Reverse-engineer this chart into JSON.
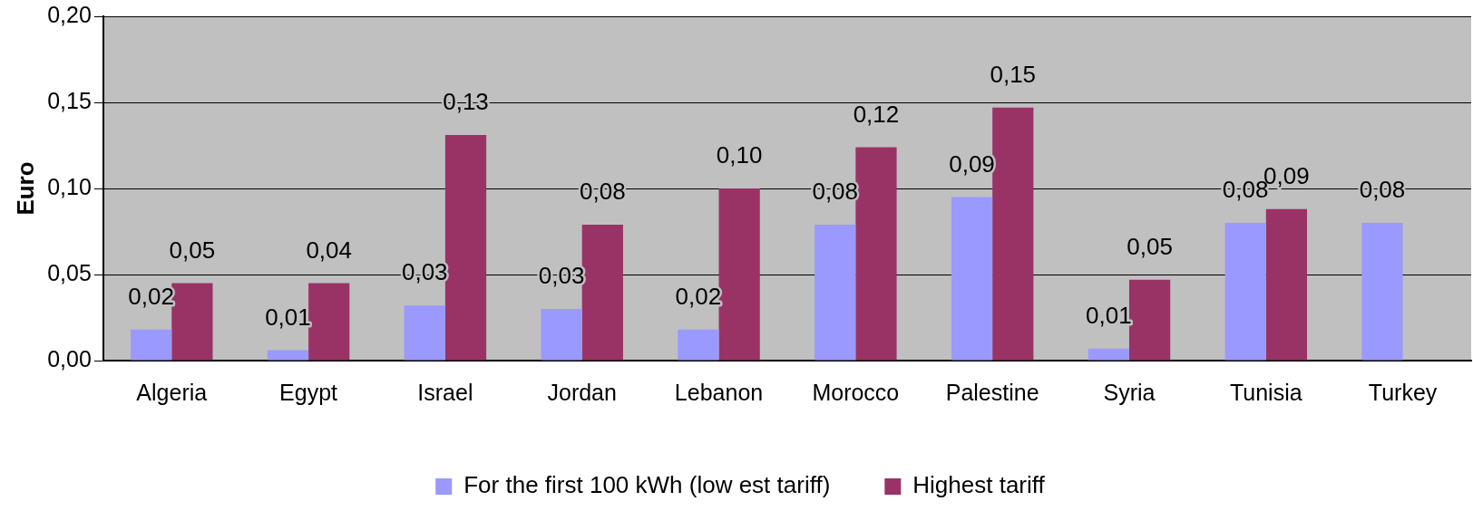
{
  "chart_data": {
    "type": "bar",
    "ylabel": "Euro",
    "categories": [
      "Algeria",
      "Egypt",
      "Israel",
      "Jordan",
      "Lebanon",
      "Morocco",
      "Palestine",
      "Syria",
      "Tunisia",
      "Turkey"
    ],
    "series": [
      {
        "name": "For the first 100 kWh (low est tariff)",
        "color": "#9999ff",
        "values": [
          0.018,
          0.006,
          0.032,
          0.03,
          0.018,
          0.079,
          0.095,
          0.007,
          0.08,
          0.08
        ],
        "value_labels": [
          "0,02",
          "0,01",
          "0,03",
          "0,03",
          "0,02",
          "0,08",
          "0,09",
          "0,01",
          "0,08",
          "0,08"
        ]
      },
      {
        "name": "Highest tariff",
        "color": "#993366",
        "values": [
          0.045,
          0.045,
          0.131,
          0.079,
          0.1,
          0.124,
          0.147,
          0.047,
          0.088,
          null
        ],
        "value_labels": [
          "0,05",
          "0,04",
          "0,13",
          "0,08",
          "0,10",
          "0,12",
          "0,15",
          "0,05",
          "0,09",
          null
        ]
      }
    ],
    "ylim": [
      0,
      0.2
    ],
    "yticks": [
      {
        "value": 0,
        "label": "0,00"
      },
      {
        "value": 0.05,
        "label": "0,05"
      },
      {
        "value": 0.1,
        "label": "0,10"
      },
      {
        "value": 0.15,
        "label": "0,15"
      },
      {
        "value": 0.2,
        "label": "0,20"
      }
    ],
    "grid": "y",
    "legend": "bottom"
  }
}
